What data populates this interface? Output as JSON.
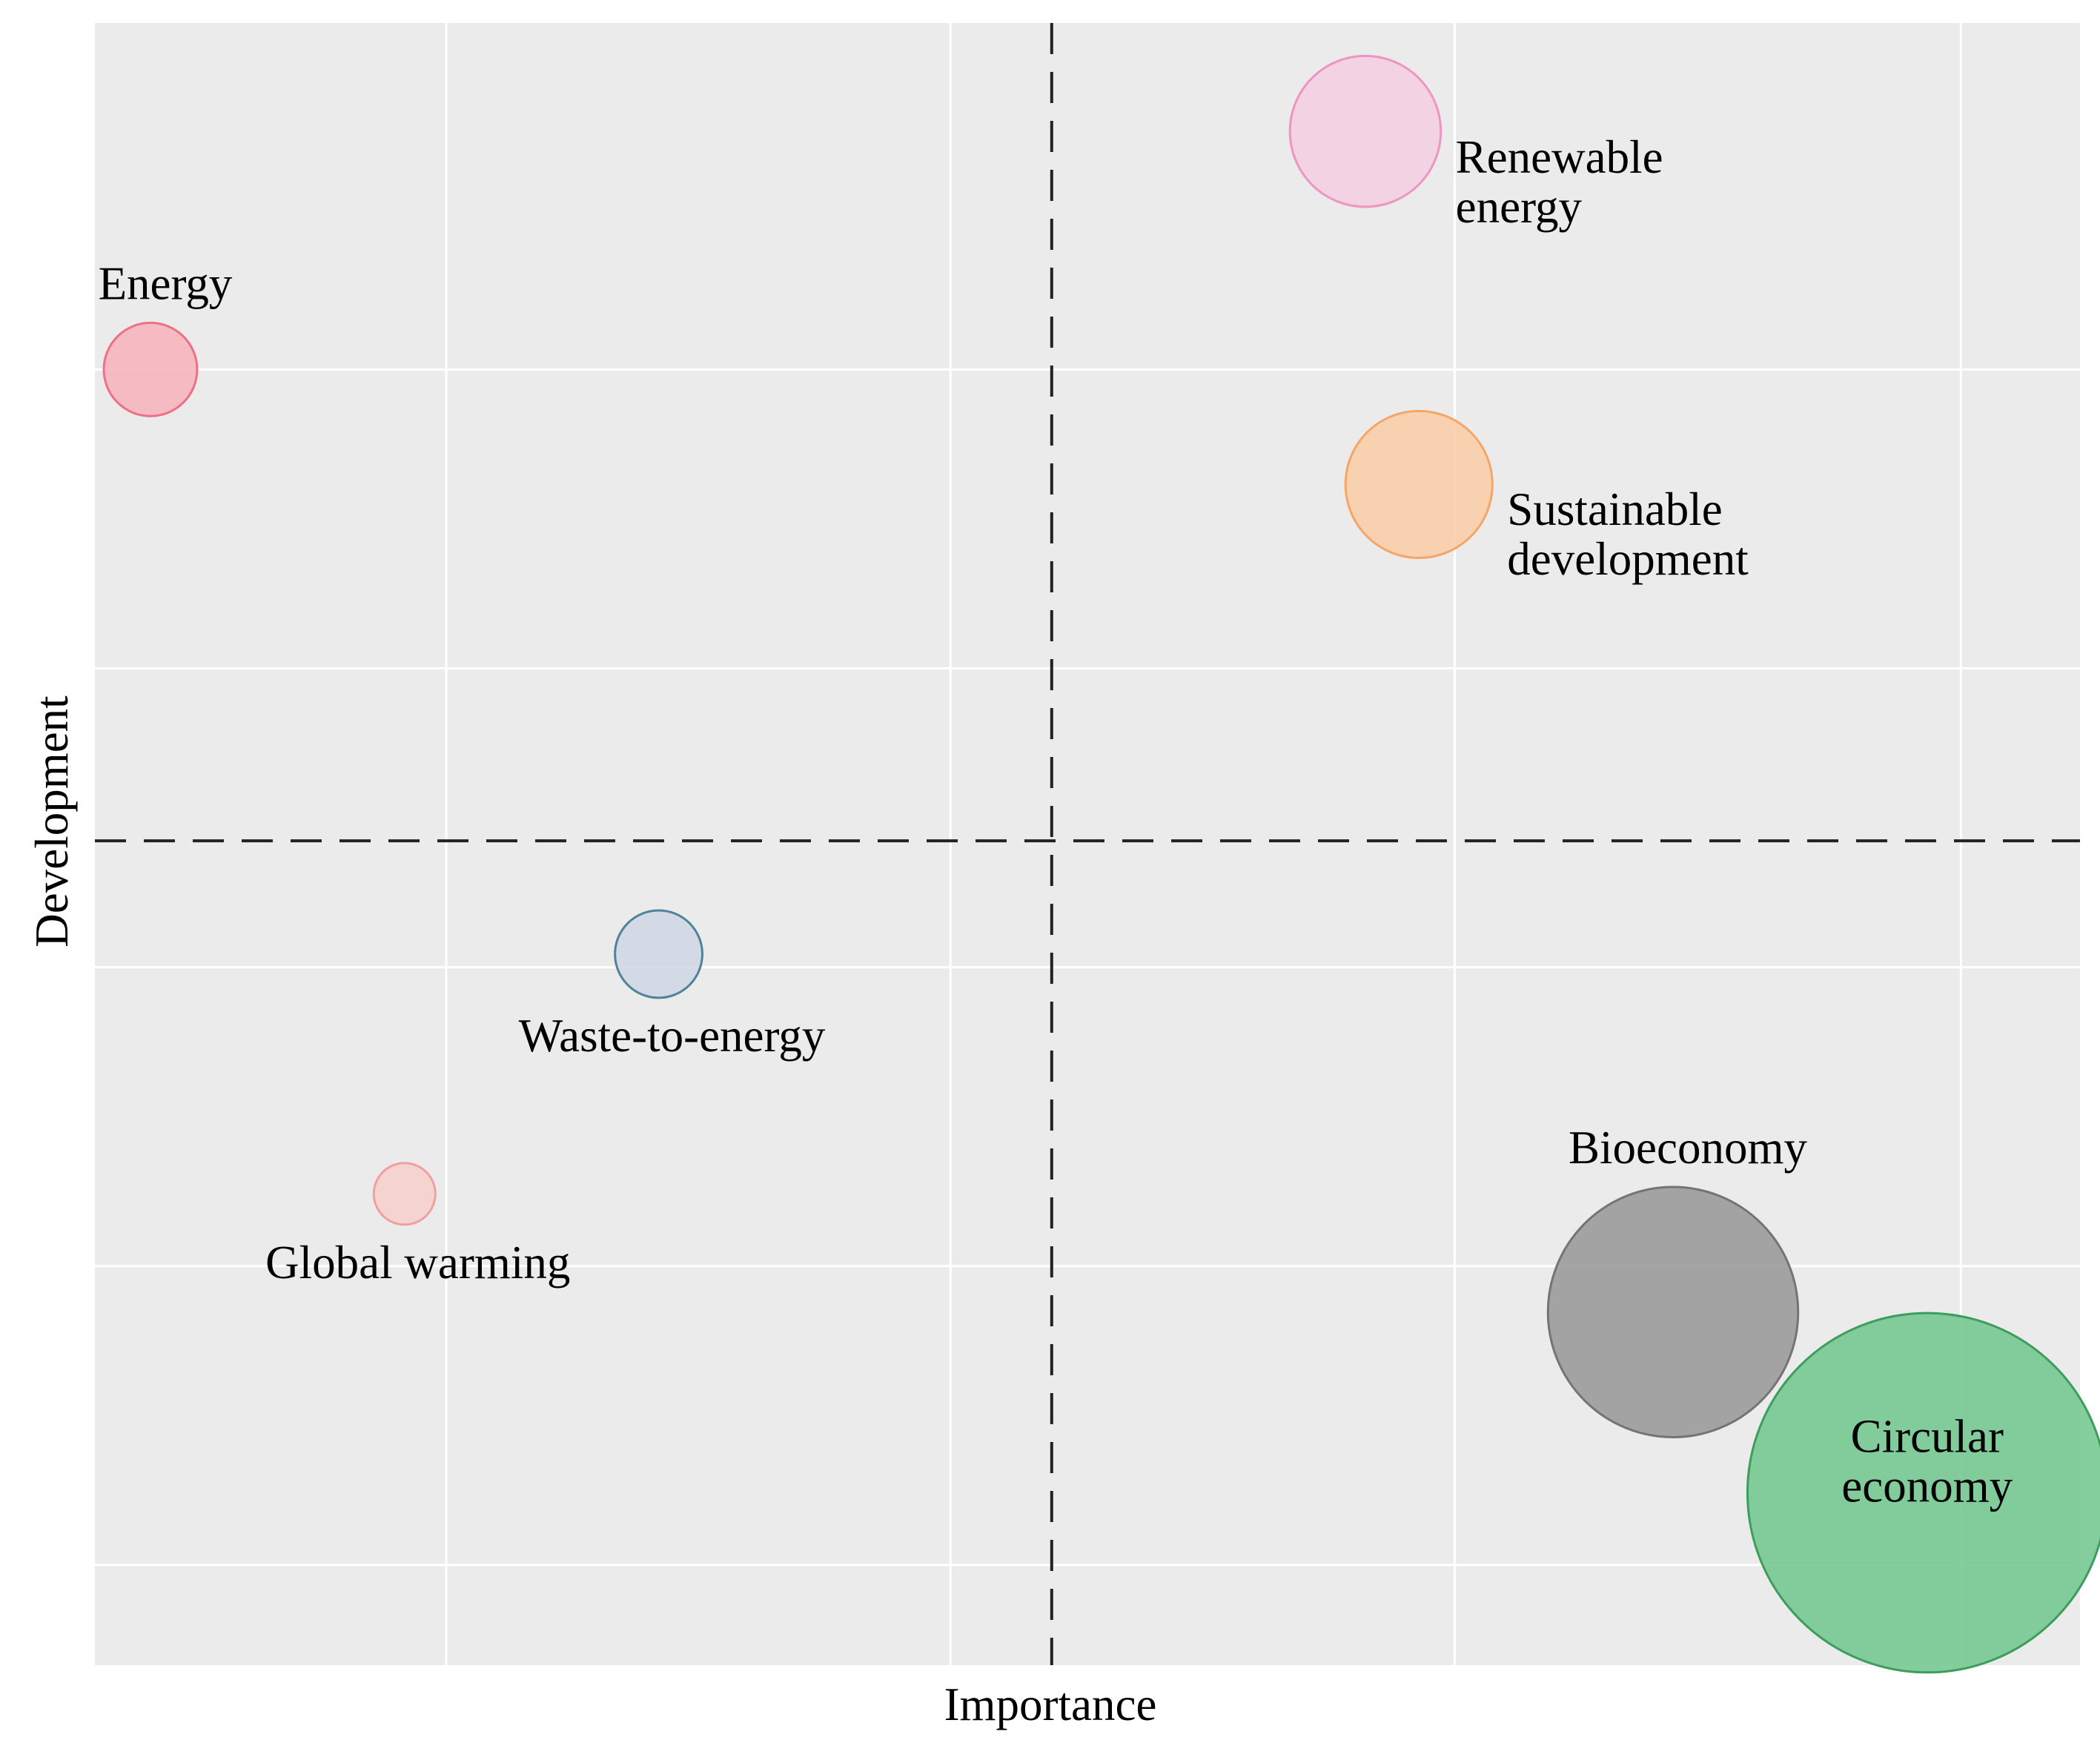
{
  "chart_data": {
    "type": "scatter",
    "subtype": "bubble",
    "title": "",
    "xlabel": "Importance",
    "ylabel": "Development",
    "xlim": [
      0,
      100
    ],
    "ylim": [
      0,
      100
    ],
    "x_gridlines": [
      17.7,
      43.1,
      68.5,
      94
    ],
    "y_gridlines": [
      6.1,
      24.3,
      42.5,
      60.7,
      78.9
    ],
    "x_reference": 48.2,
    "y_reference": 50.2,
    "grid": true,
    "points": [
      {
        "name": "Energy",
        "label_lines": [
          "Energy"
        ],
        "x": 2.8,
        "y": 78.9,
        "size": 4.7,
        "color": "#f7b3bd",
        "stroke": "#ee6f86",
        "label_anchor": "above"
      },
      {
        "name": "Renewable energy",
        "label_lines": [
          "Renewable",
          "energy"
        ],
        "x": 64.0,
        "y": 93.4,
        "size": 7.6,
        "color": "#f4cfe1",
        "stroke": "#ec96c1",
        "label_anchor": "below-right"
      },
      {
        "name": "Sustainable development",
        "label_lines": [
          "Sustainable",
          "development"
        ],
        "x": 66.7,
        "y": 71.9,
        "size": 7.4,
        "color": "#f9cda8",
        "stroke": "#f5a667",
        "label_anchor": "below-right"
      },
      {
        "name": "Waste-to-energy",
        "label_lines": [
          "Waste-to-energy"
        ],
        "x": 28.4,
        "y": 43.3,
        "size": 4.4,
        "color": "#cfd7e4",
        "stroke": "#4f8399",
        "label_anchor": "below"
      },
      {
        "name": "Global warming",
        "label_lines": [
          "Global warming"
        ],
        "x": 15.6,
        "y": 28.7,
        "size": 3.1,
        "color": "#f6cfc9",
        "stroke": "#f0a0a2",
        "label_anchor": "below"
      },
      {
        "name": "Bioeconomy",
        "label_lines": [
          "Bioeconomy"
        ],
        "x": 79.5,
        "y": 21.5,
        "size": 12.6,
        "color": "#999999",
        "stroke": "#747474",
        "label_anchor": "above"
      },
      {
        "name": "Circular economy",
        "label_lines": [
          "Circular",
          "economy"
        ],
        "x": 92.3,
        "y": 10.5,
        "size": 18.1,
        "color": "#73c68f",
        "stroke": "#3c9d5c",
        "label_anchor": "inside"
      }
    ]
  }
}
